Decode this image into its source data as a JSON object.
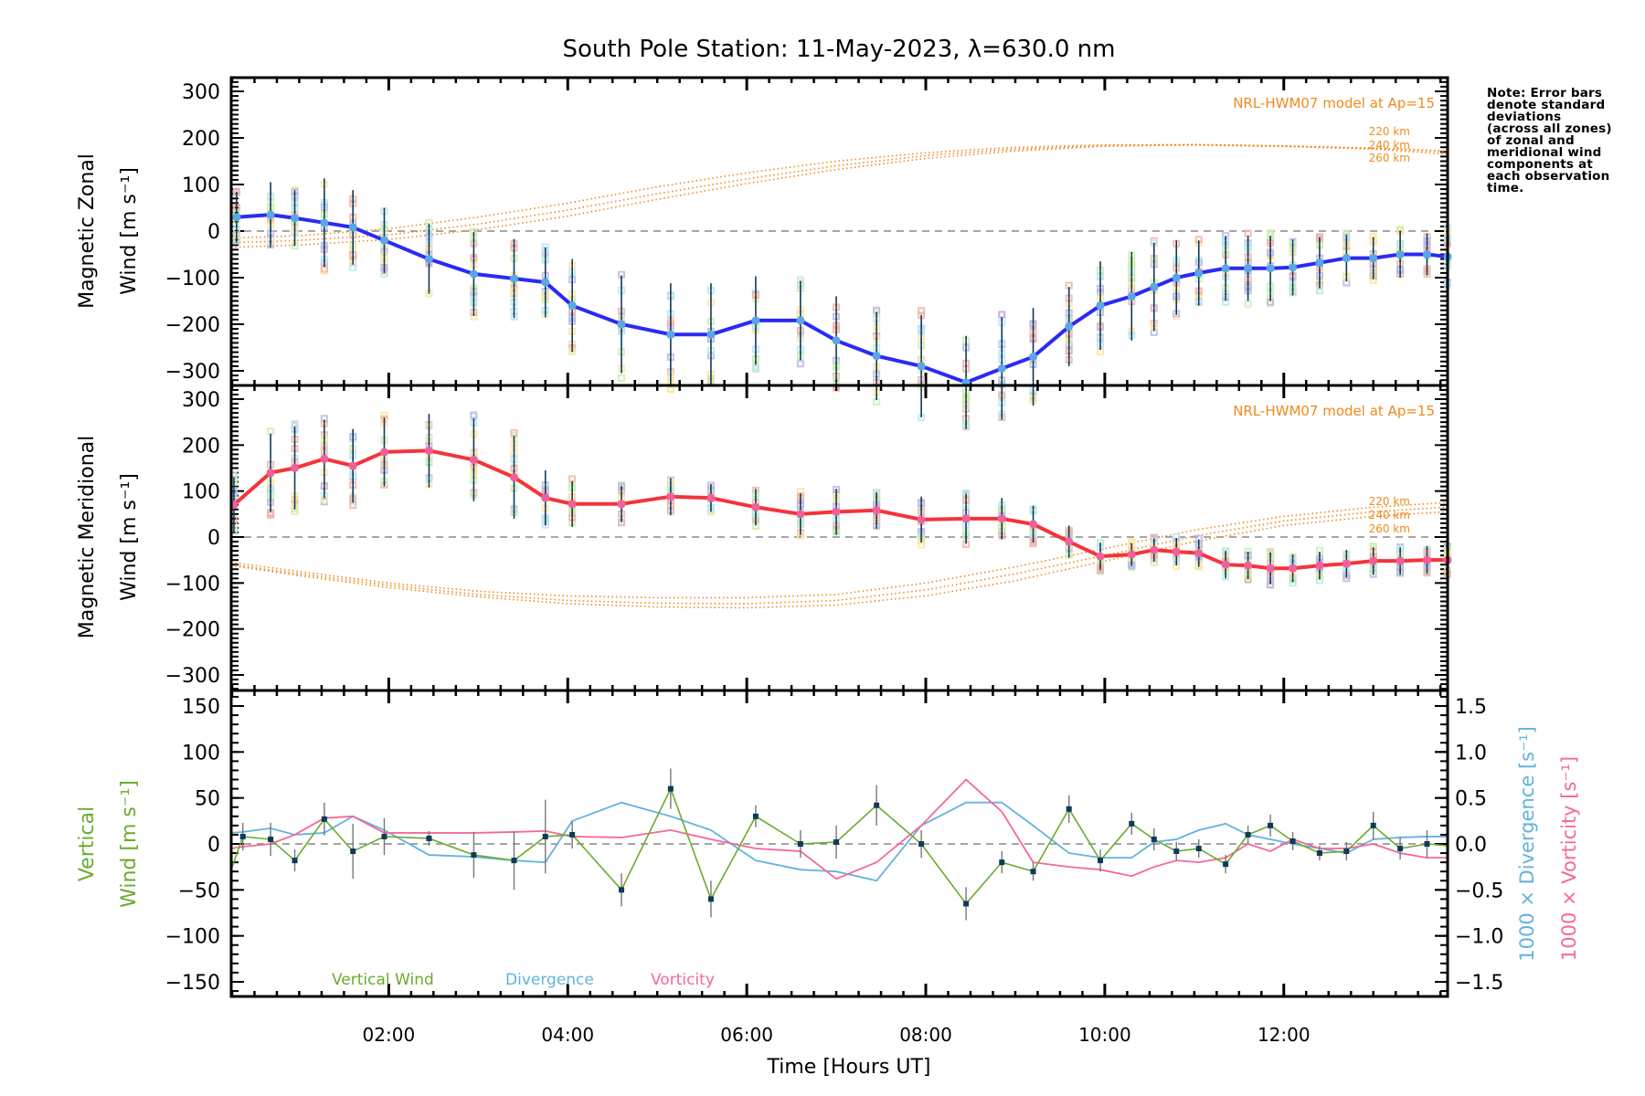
{
  "chart_data": [
    {
      "type": "line",
      "panel": "zonal",
      "title": "South Pole Station: 11-May-2023, λ=630.0 nm",
      "ylabel_line1": "Magnetic Zonal",
      "ylabel_line2": "Wind [m s⁻¹]",
      "ylim": [
        -330,
        330
      ],
      "yticks": [
        300,
        200,
        100,
        0,
        -100,
        -200,
        -300
      ],
      "model_label": "NRL-HWM07 model at Ap=15",
      "model_altitude_labels": [
        "220 km",
        "240 km",
        "260 km"
      ],
      "x": [
        0.3,
        0.68,
        0.95,
        1.28,
        1.6,
        1.95,
        2.45,
        2.95,
        3.4,
        3.75,
        4.05,
        4.6,
        5.15,
        5.6,
        6.1,
        6.6,
        7.0,
        7.45,
        7.95,
        8.45,
        8.85,
        9.2,
        9.6,
        9.95,
        10.3,
        10.55,
        10.8,
        11.05,
        11.35,
        11.6,
        11.85,
        12.1,
        12.4,
        12.7,
        13.0,
        13.3,
        13.6,
        13.83
      ],
      "series": [
        {
          "name": "Magnetic Zonal Wind",
          "color": "#2a2af5",
          "values": [
            30,
            35,
            28,
            18,
            8,
            -20,
            -60,
            -92,
            -102,
            -110,
            -160,
            -200,
            -222,
            -222,
            -192,
            -192,
            -235,
            -268,
            -290,
            -325,
            -295,
            -270,
            -205,
            -160,
            -140,
            -120,
            -100,
            -90,
            -80,
            -80,
            -80,
            -78,
            -68,
            -58,
            -58,
            -50,
            -50,
            -55
          ],
          "errors": [
            55,
            70,
            60,
            95,
            80,
            70,
            75,
            90,
            85,
            75,
            100,
            105,
            110,
            110,
            95,
            85,
            95,
            95,
            110,
            100,
            110,
            105,
            85,
            95,
            95,
            95,
            80,
            70,
            70,
            70,
            70,
            60,
            55,
            50,
            45,
            50,
            45,
            60
          ]
        },
        {
          "name": "HWM07 220 km",
          "color": "#f08a1c",
          "style": "dotted",
          "x": [
            0.24,
            1.0,
            2.0,
            3.0,
            4.0,
            5.0,
            6.0,
            7.0,
            8.0,
            9.0,
            10.0,
            11.0,
            12.0,
            13.0,
            13.83
          ],
          "values": [
            -15,
            -10,
            5,
            30,
            60,
            95,
            125,
            150,
            168,
            180,
            185,
            185,
            182,
            178,
            172
          ]
        },
        {
          "name": "HWM07 240 km",
          "color": "#f08a1c",
          "style": "dotted",
          "x": [
            0.24,
            1.0,
            2.0,
            3.0,
            4.0,
            5.0,
            6.0,
            7.0,
            8.0,
            9.0,
            10.0,
            11.0,
            12.0,
            13.0,
            13.83
          ],
          "values": [
            -25,
            -20,
            -8,
            15,
            45,
            80,
            112,
            140,
            162,
            176,
            184,
            186,
            183,
            178,
            170
          ]
        },
        {
          "name": "HWM07 260 km",
          "color": "#f08a1c",
          "style": "dotted",
          "x": [
            0.24,
            1.0,
            2.0,
            3.0,
            4.0,
            5.0,
            6.0,
            7.0,
            8.0,
            9.0,
            10.0,
            11.0,
            12.0,
            13.0,
            13.83
          ],
          "values": [
            -35,
            -30,
            -18,
            3,
            32,
            68,
            102,
            132,
            156,
            172,
            182,
            185,
            182,
            176,
            165
          ]
        }
      ]
    },
    {
      "type": "line",
      "panel": "meridional",
      "ylabel_line1": "Magnetic Meridional",
      "ylabel_line2": "Wind [m s⁻¹]",
      "ylim": [
        -330,
        330
      ],
      "yticks": [
        300,
        200,
        100,
        0,
        -100,
        -200,
        -300
      ],
      "model_label": "NRL-HWM07 model at Ap=15",
      "model_altitude_labels": [
        "220 km",
        "240 km",
        "260 km"
      ],
      "x": [
        0.27,
        0.68,
        0.95,
        1.28,
        1.6,
        1.95,
        2.45,
        2.95,
        3.4,
        3.75,
        4.05,
        4.6,
        5.15,
        5.6,
        6.1,
        6.6,
        7.0,
        7.45,
        7.95,
        8.45,
        8.85,
        9.2,
        9.6,
        9.95,
        10.3,
        10.55,
        10.8,
        11.05,
        11.35,
        11.6,
        11.85,
        12.1,
        12.4,
        12.7,
        13.0,
        13.3,
        13.6,
        13.83
      ],
      "series": [
        {
          "name": "Magnetic Meridional Wind",
          "color": "#f5333a",
          "values": [
            70,
            140,
            150,
            170,
            155,
            185,
            188,
            168,
            130,
            85,
            72,
            72,
            88,
            85,
            65,
            50,
            55,
            58,
            38,
            40,
            40,
            28,
            -10,
            -42,
            -38,
            -28,
            -32,
            -35,
            -60,
            -62,
            -68,
            -68,
            -62,
            -58,
            -52,
            -52,
            -50,
            -50
          ],
          "errors": [
            60,
            85,
            90,
            85,
            80,
            75,
            80,
            90,
            90,
            60,
            50,
            40,
            40,
            30,
            40,
            45,
            50,
            40,
            50,
            55,
            45,
            40,
            35,
            30,
            25,
            25,
            30,
            30,
            30,
            30,
            35,
            30,
            30,
            30,
            30,
            30,
            30,
            30
          ]
        },
        {
          "name": "HWM07 220 km",
          "color": "#f08a1c",
          "style": "dotted",
          "x": [
            0.24,
            1.0,
            2.0,
            3.0,
            4.0,
            5.0,
            6.0,
            7.0,
            8.0,
            9.0,
            10.0,
            11.0,
            12.0,
            13.0,
            13.83
          ],
          "values": [
            -55,
            -75,
            -100,
            -118,
            -128,
            -132,
            -132,
            -125,
            -100,
            -65,
            -25,
            15,
            45,
            65,
            75
          ]
        },
        {
          "name": "HWM07 240 km",
          "color": "#f08a1c",
          "style": "dotted",
          "x": [
            0.24,
            1.0,
            2.0,
            3.0,
            4.0,
            5.0,
            6.0,
            7.0,
            8.0,
            9.0,
            10.0,
            11.0,
            12.0,
            13.0,
            13.83
          ],
          "values": [
            -60,
            -80,
            -105,
            -125,
            -138,
            -144,
            -145,
            -138,
            -115,
            -80,
            -40,
            2,
            35,
            55,
            65
          ]
        },
        {
          "name": "HWM07 260 km",
          "color": "#f08a1c",
          "style": "dotted",
          "x": [
            0.24,
            1.0,
            2.0,
            3.0,
            4.0,
            5.0,
            6.0,
            7.0,
            8.0,
            9.0,
            10.0,
            11.0,
            12.0,
            13.0,
            13.83
          ],
          "values": [
            -62,
            -84,
            -110,
            -130,
            -145,
            -152,
            -154,
            -148,
            -128,
            -95,
            -52,
            -10,
            25,
            45,
            55
          ]
        }
      ]
    },
    {
      "type": "line",
      "panel": "vertical",
      "ylabel_line1": "Vertical",
      "ylabel_line2": "Wind [m s⁻¹]",
      "ylim": [
        -170,
        170
      ],
      "yticks": [
        150,
        100,
        50,
        0,
        -50,
        -100,
        -150
      ],
      "y2label_div": "1000 × Divergence [s⁻¹]",
      "y2label_vort": "1000 × Vorticity [s⁻¹]",
      "y2lim": [
        -1.7,
        1.7
      ],
      "y2ticks": [
        "1.5",
        "1.0",
        "0.5",
        "0.0",
        "−0.5",
        "−1.0",
        "−1.5"
      ],
      "legend": [
        "Vertical Wind",
        "Divergence",
        "Vorticity"
      ],
      "legend_position": "bottom-left",
      "xlabel": "Time [Hours UT]",
      "xlim": [
        0.24,
        13.83
      ],
      "xticks": [
        "02:00",
        "04:00",
        "06:00",
        "08:00",
        "10:00",
        "12:00"
      ],
      "x": [
        0.24,
        0.37,
        0.68,
        0.95,
        1.28,
        1.6,
        1.95,
        2.45,
        2.95,
        3.4,
        3.75,
        4.05,
        4.6,
        5.15,
        5.6,
        6.1,
        6.6,
        7.0,
        7.45,
        7.95,
        8.45,
        8.85,
        9.2,
        9.6,
        9.95,
        10.3,
        10.55,
        10.8,
        11.05,
        11.35,
        11.6,
        11.85,
        12.1,
        12.4,
        12.7,
        13.0,
        13.3,
        13.6,
        13.83
      ],
      "series": [
        {
          "name": "Vertical Wind",
          "color": "#6aab2e",
          "axis": "left",
          "values": [
            -28,
            8,
            5,
            -18,
            27,
            -8,
            8,
            6,
            -12,
            -18,
            8,
            10,
            -50,
            60,
            -60,
            30,
            0,
            2,
            42,
            0,
            -65,
            -20,
            -30,
            38,
            -18,
            22,
            5,
            -8,
            -5,
            -22,
            10,
            20,
            3,
            -10,
            -8,
            20,
            -5,
            0,
            -2
          ],
          "errors": [
            0,
            15,
            18,
            12,
            18,
            30,
            20,
            8,
            25,
            32,
            40,
            15,
            18,
            22,
            20,
            12,
            15,
            18,
            22,
            15,
            18,
            12,
            10,
            15,
            12,
            12,
            12,
            10,
            10,
            10,
            10,
            12,
            10,
            8,
            10,
            15,
            12,
            15,
            0
          ]
        },
        {
          "name": "Divergence",
          "color": "#62b3dc",
          "axis": "right",
          "values": [
            0.12,
            0.13,
            0.17,
            0.1,
            0.12,
            0.3,
            0.15,
            -0.12,
            -0.14,
            -0.18,
            -0.2,
            0.25,
            0.45,
            0.3,
            0.15,
            -0.18,
            -0.28,
            -0.3,
            -0.4,
            0.2,
            0.45,
            0.45,
            0.2,
            -0.1,
            -0.15,
            -0.15,
            0.02,
            0.05,
            0.15,
            0.22,
            0.1,
            0.05,
            0.0,
            -0.05,
            -0.1,
            0.05,
            0.07,
            0.08,
            0.08
          ]
        },
        {
          "name": "Vorticity",
          "color": "#f5689a",
          "axis": "right",
          "values": [
            -0.05,
            -0.03,
            0.0,
            0.1,
            0.28,
            0.3,
            0.12,
            0.12,
            0.12,
            0.13,
            0.14,
            0.08,
            0.07,
            0.15,
            0.05,
            -0.05,
            -0.08,
            -0.38,
            -0.2,
            0.2,
            0.7,
            0.35,
            -0.2,
            -0.25,
            -0.28,
            -0.35,
            -0.25,
            -0.18,
            -0.2,
            -0.15,
            0.0,
            -0.08,
            0.05,
            -0.05,
            -0.05,
            0.0,
            -0.1,
            -0.15,
            -0.15
          ]
        }
      ]
    }
  ],
  "note": "Note: Error bars\ndenote standard\ndeviations\n(across all zones)\nof zonal and\nmeridional wind\ncomponents at\neach observation\ntime.",
  "colors": {
    "axis": "#000000",
    "zero_line": "#888888",
    "error_bar": "#0f3a5a",
    "zonal_marker": "#5aa6e6",
    "meridional_marker": "#f0609a",
    "model": "#f08a1c",
    "sample_palette": [
      "#f5b3a8",
      "#fbe6a0",
      "#c8f0b0",
      "#b8e8f0",
      "#b8b8e8"
    ]
  }
}
